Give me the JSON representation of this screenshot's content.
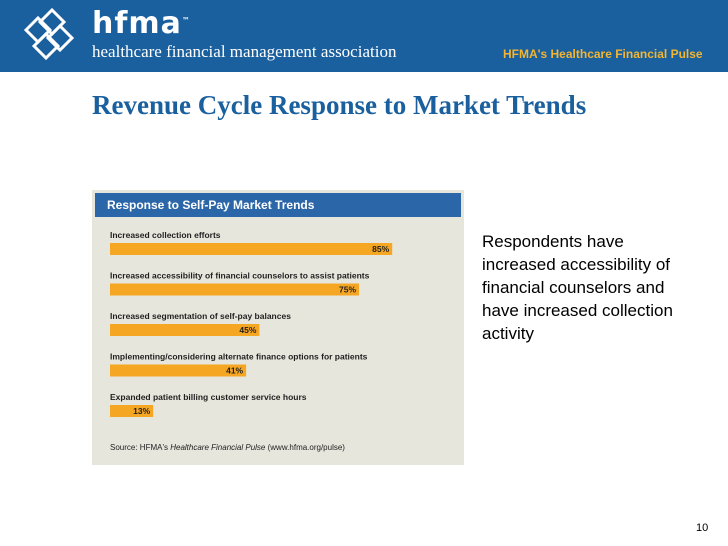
{
  "header": {
    "logo_word": "hfma",
    "logo_tm": "™",
    "logo_tagline": "healthcare financial management association",
    "pulse_label": "HFMA's Healthcare Financial Pulse",
    "colors": {
      "bar": "#1a5f9e",
      "accent": "#f2b531"
    }
  },
  "slide": {
    "title": "Revenue Cycle Response to Market Trends",
    "side_text": "Respondents have increased accessibility of financial counselors and have increased collection activity",
    "page_number": "10"
  },
  "chart_data": {
    "type": "bar",
    "orientation": "horizontal",
    "title": "Response to Self-Pay Market Trends",
    "categories": [
      "Increased collection efforts",
      "Increased accessibility of financial counselors to assist patients",
      "Increased segmentation of self-pay balances",
      "Implementing/considering alternate finance options for patients",
      "Expanded patient billing customer service hours"
    ],
    "values": [
      85,
      75,
      45,
      41,
      13
    ],
    "value_labels": [
      "85%",
      "75%",
      "45%",
      "41%",
      "13%"
    ],
    "xlim": [
      0,
      100
    ],
    "bar_color": "#f5a623",
    "source_prefix": "Source: HFMA's ",
    "source_italic": "Healthcare Financial Pulse",
    "source_suffix": " (www.hfma.org/pulse)"
  }
}
